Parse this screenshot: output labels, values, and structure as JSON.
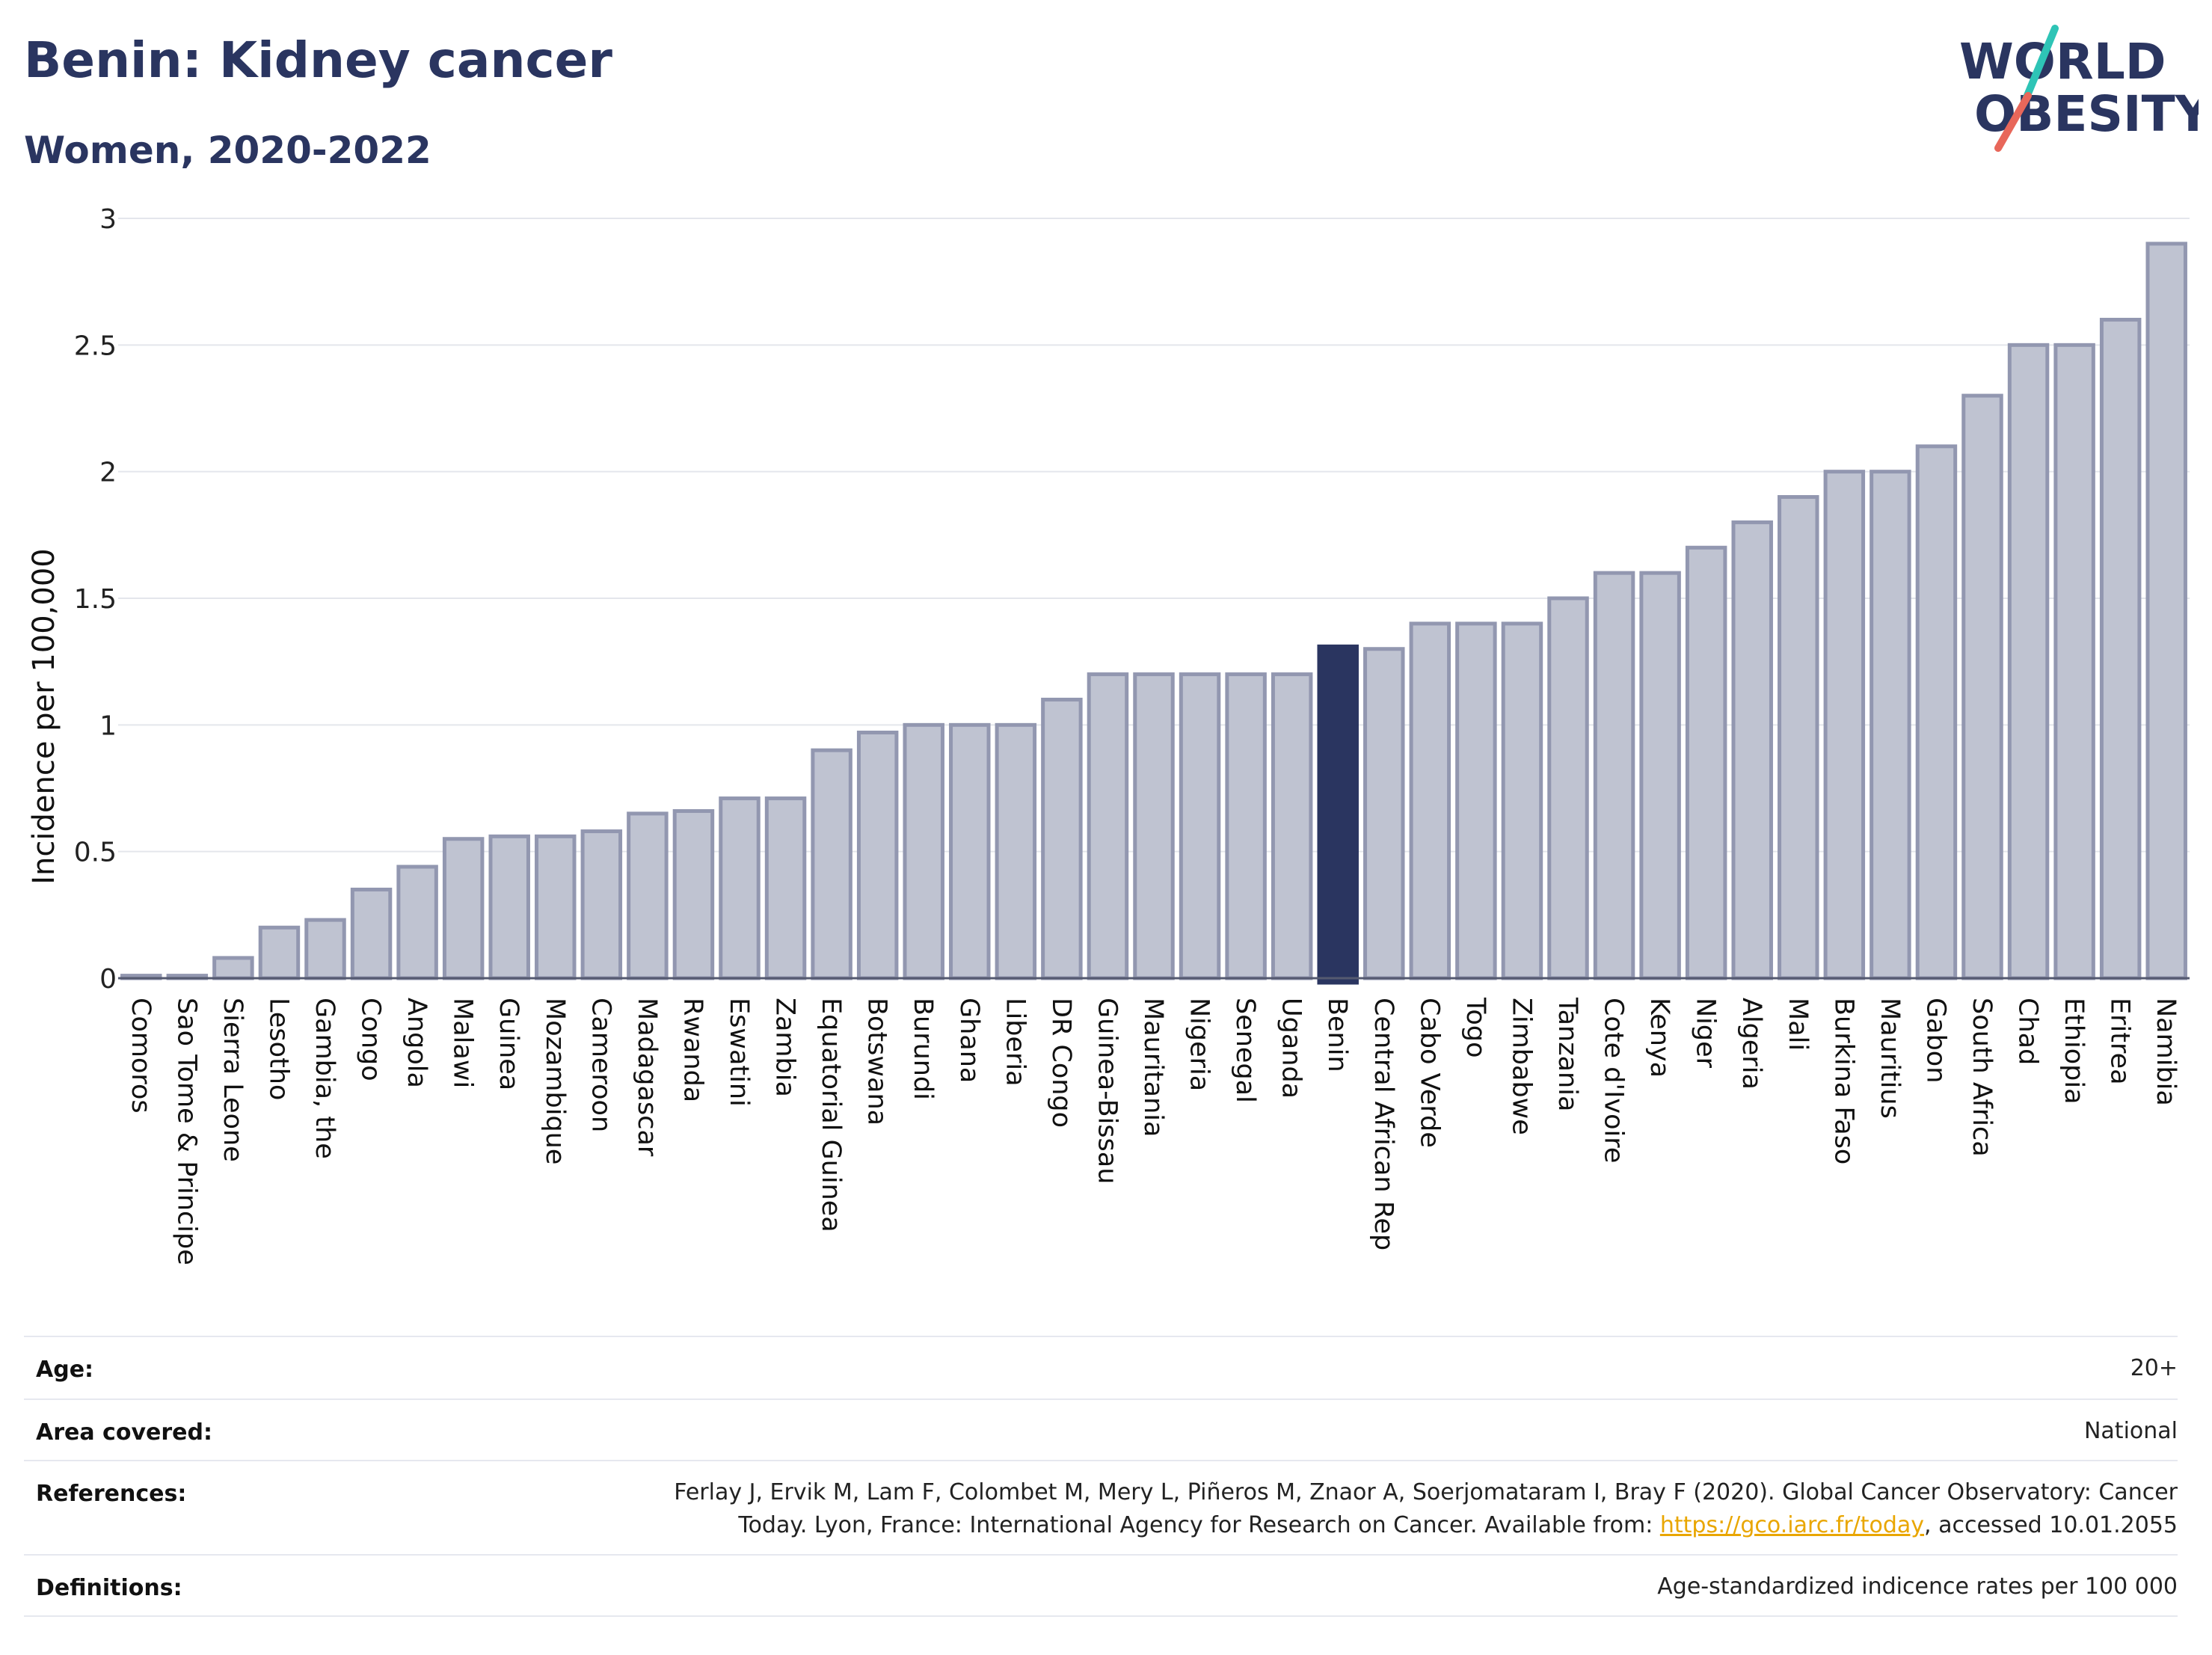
{
  "header": {
    "title": "Benin: Kidney cancer",
    "subtitle": "Women, 2020-2022"
  },
  "logo": {
    "line1": "WORLD",
    "line2": "OBESITY",
    "text_color": "#2a3560",
    "accent_teal": "#2ec4b6",
    "accent_coral": "#e8675a"
  },
  "chart_data": {
    "type": "bar",
    "title": "",
    "xlabel": "",
    "ylabel": "Incidence per 100,000",
    "ylim": [
      0,
      3
    ],
    "yticks": [
      0,
      0.5,
      1,
      1.5,
      2,
      2.5,
      3
    ],
    "ytick_labels": [
      "0",
      "0.5",
      "1",
      "1.5",
      "2",
      "2.5",
      "3"
    ],
    "grid": true,
    "highlight": "Benin",
    "bar_color": "#bfc3d1",
    "bar_border_color": "#9297b0",
    "highlight_color": "#2a3560",
    "categories": [
      "Comoros",
      "Sao Tome & Principe",
      "Sierra Leone",
      "Lesotho",
      "Gambia, the",
      "Congo",
      "Angola",
      "Malawi",
      "Guinea",
      "Mozambique",
      "Cameroon",
      "Madagascar",
      "Rwanda",
      "Eswatini",
      "Zambia",
      "Equatorial Guinea",
      "Botswana",
      "Burundi",
      "Ghana",
      "Liberia",
      "DR Congo",
      "Guinea-Bissau",
      "Mauritania",
      "Nigeria",
      "Senegal",
      "Uganda",
      "Benin",
      "Central African Rep",
      "Cabo Verde",
      "Togo",
      "Zimbabwe",
      "Tanzania",
      "Cote d'Ivoire",
      "Kenya",
      "Niger",
      "Algeria",
      "Mali",
      "Burkina Faso",
      "Mauritius",
      "Gabon",
      "South Africa",
      "Chad",
      "Ethiopia",
      "Eritrea",
      "Namibia"
    ],
    "values": [
      0.01,
      0.01,
      0.08,
      0.2,
      0.23,
      0.35,
      0.44,
      0.55,
      0.56,
      0.56,
      0.58,
      0.65,
      0.66,
      0.71,
      0.71,
      0.9,
      0.97,
      1.0,
      1.0,
      1.0,
      1.1,
      1.2,
      1.2,
      1.2,
      1.2,
      1.2,
      1.31,
      1.3,
      1.4,
      1.4,
      1.4,
      1.5,
      1.6,
      1.6,
      1.7,
      1.8,
      1.9,
      2.0,
      2.0,
      2.1,
      2.3,
      2.5,
      2.5,
      2.6,
      2.9
    ]
  },
  "meta": {
    "age_label": "Age:",
    "age_value": "20+",
    "area_label": "Area covered:",
    "area_value": "National",
    "references_label": "References:",
    "references_text_1": "Ferlay J, Ervik M, Lam F, Colombet M, Mery L, Piñeros M, Znaor A, Soerjomataram I, Bray F (2020). Global Cancer Observatory: Cancer",
    "references_text_2": "Today. Lyon, France: International Agency for Research on Cancer. Available from: ",
    "references_link": "https://gco.iarc.fr/today",
    "references_text_3": ", accessed 10.01.2055",
    "definitions_label": "Definitions:",
    "definitions_value": "Age-standardized indicence rates per 100 000"
  }
}
